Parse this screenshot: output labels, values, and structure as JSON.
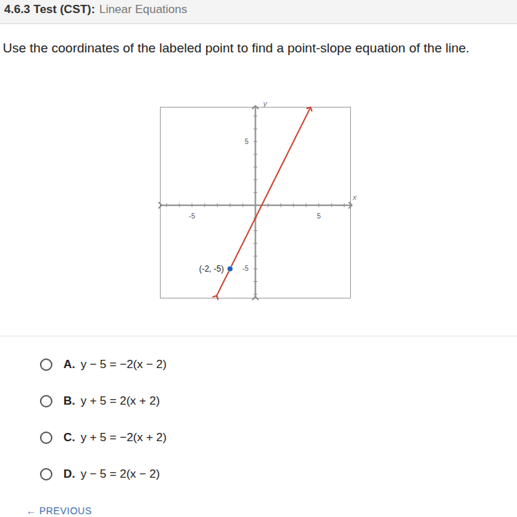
{
  "header": {
    "title": "4.6.3 Test (CST):",
    "subtitle": "Linear Equations"
  },
  "question": "Use the coordinates of the labeled point to find a point-slope equation of the line.",
  "chart_data": {
    "type": "line",
    "x_label": "x",
    "y_label": "y",
    "xlim": [
      -7.5,
      7.5
    ],
    "ylim": [
      -7.3,
      7.7
    ],
    "xticks": [
      -5,
      5
    ],
    "yticks": [
      -5,
      5
    ],
    "x": [
      -3.1,
      4.3
    ],
    "values": [
      -7.2,
      7.6
    ],
    "color": "#c8442c",
    "annotations": [
      {
        "x": -2,
        "y": -5,
        "text": "(-2, -5)",
        "color": "#1f5fbf"
      }
    ]
  },
  "options": [
    {
      "letter": "A.",
      "text": "y − 5 = −2(x − 2)"
    },
    {
      "letter": "B.",
      "text": "y + 5 = 2(x + 2)"
    },
    {
      "letter": "C.",
      "text": "y + 5 = −2(x + 2)"
    },
    {
      "letter": "D.",
      "text": "y − 5 = 2(x − 2)"
    }
  ],
  "nav": {
    "previous": "← PREVIOUS"
  }
}
